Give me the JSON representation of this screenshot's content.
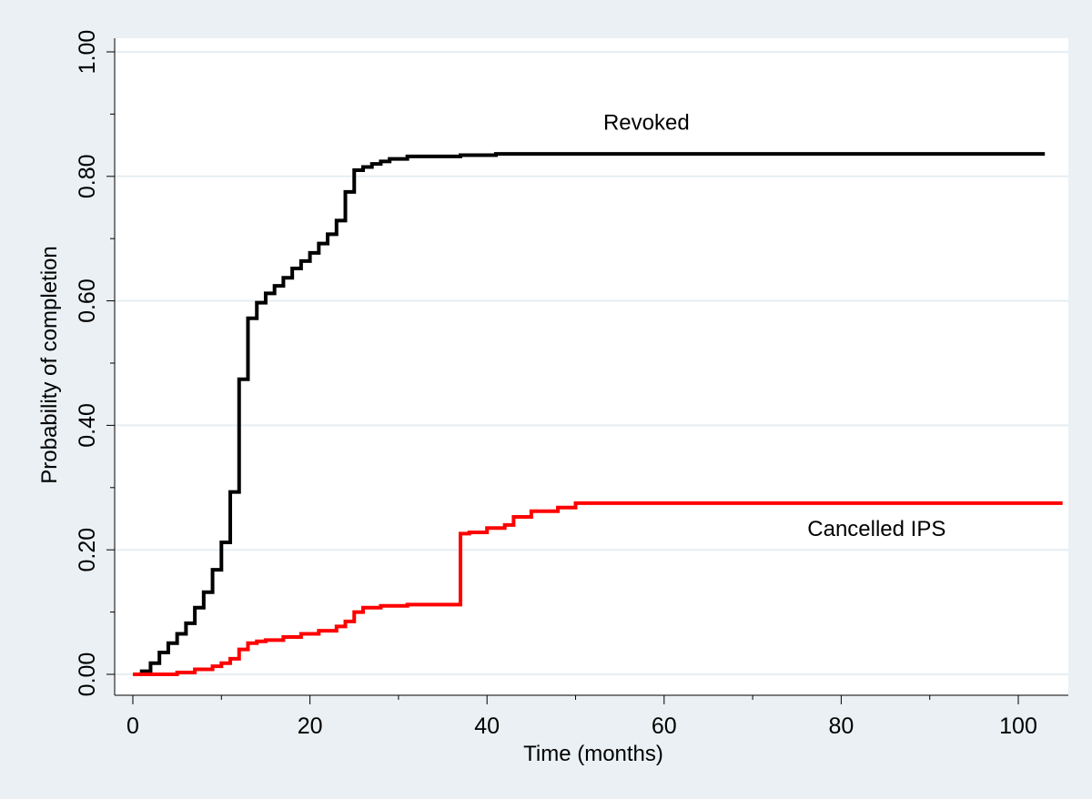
{
  "chart_data": {
    "type": "line",
    "title": "",
    "xlabel": "Time (months)",
    "ylabel": "Probability of completion",
    "xlim": [
      0,
      105
    ],
    "ylim": [
      0,
      1
    ],
    "x_ticks": [
      0,
      20,
      40,
      60,
      80,
      100
    ],
    "x_tick_labels": [
      "0",
      "20",
      "40",
      "60",
      "80",
      "100"
    ],
    "y_ticks": [
      0,
      0.2,
      0.4,
      0.6,
      0.8,
      1.0
    ],
    "y_tick_labels": [
      "0.00",
      "0.20",
      "0.40",
      "0.60",
      "0.80",
      "1.00"
    ],
    "grid": "horizontal",
    "step": true,
    "series": [
      {
        "name": "Revoked",
        "color": "#000000",
        "x": [
          0,
          1,
          2,
          3,
          4,
          5,
          6,
          7,
          8,
          9,
          10,
          11,
          12,
          13,
          14,
          15,
          16,
          17,
          18,
          19,
          20,
          21,
          22,
          23,
          24,
          25,
          26,
          27,
          28,
          29,
          31,
          37,
          41,
          103
        ],
        "y": [
          0.0,
          0.005,
          0.018,
          0.035,
          0.05,
          0.065,
          0.082,
          0.107,
          0.132,
          0.168,
          0.212,
          0.293,
          0.474,
          0.572,
          0.597,
          0.612,
          0.624,
          0.637,
          0.652,
          0.664,
          0.677,
          0.692,
          0.707,
          0.729,
          0.775,
          0.81,
          0.815,
          0.82,
          0.824,
          0.828,
          0.832,
          0.834,
          0.836,
          0.836
        ]
      },
      {
        "name": "Cancelled IPS",
        "color": "#ff0000",
        "x": [
          0,
          5,
          7,
          9,
          10,
          11,
          12,
          13,
          14,
          15,
          17,
          19,
          21,
          23,
          24,
          25,
          26,
          28,
          31,
          37,
          38,
          40,
          42,
          43,
          45,
          48,
          50,
          105
        ],
        "y": [
          0.0,
          0.003,
          0.008,
          0.013,
          0.018,
          0.025,
          0.04,
          0.05,
          0.053,
          0.055,
          0.06,
          0.065,
          0.07,
          0.077,
          0.085,
          0.1,
          0.107,
          0.11,
          0.112,
          0.226,
          0.228,
          0.235,
          0.24,
          0.253,
          0.262,
          0.268,
          0.275,
          0.275
        ]
      }
    ],
    "annotations": [
      {
        "text": "Revoked",
        "x": 58,
        "y": 0.875
      },
      {
        "text": "Cancelled IPS",
        "x": 84,
        "y": 0.222
      }
    ]
  }
}
